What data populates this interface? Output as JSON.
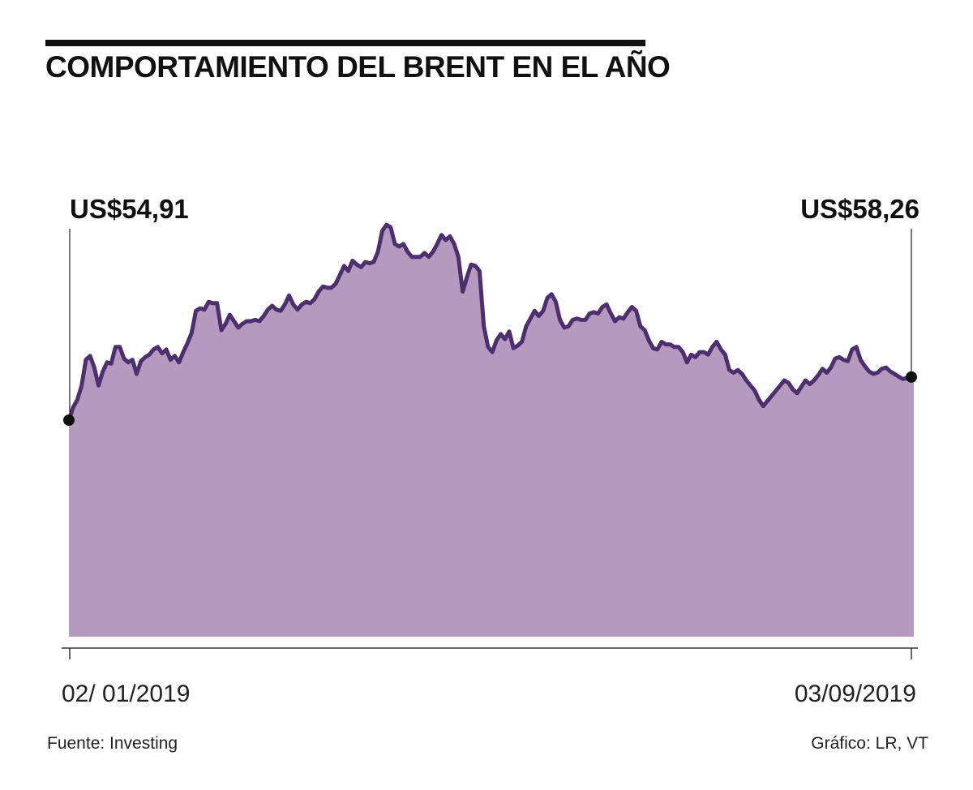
{
  "title": "COMPORTAMIENTO DEL BRENT EN EL AÑO",
  "source": "Fuente: Investing",
  "credit": "Gráfico: LR, VT",
  "colors": {
    "fill": "#b49abf",
    "line": "#4b2f6f",
    "text": "#111111"
  },
  "chart_data": {
    "type": "area",
    "title": "COMPORTAMIENTO DEL BRENT EN EL AÑO",
    "xlabel": "",
    "ylabel": "",
    "x_tick_labels": [
      "02/ 01/2019",
      "03/09/2019"
    ],
    "x_range": [
      "2019-01-02",
      "2019-09-03"
    ],
    "ylim": [
      30,
      75
    ],
    "grid": false,
    "start": {
      "date": "2019-01-02",
      "value": 54.91,
      "label": "US$54,91"
    },
    "end": {
      "date": "2019-09-03",
      "value": 58.26,
      "label": "US$58,26"
    },
    "series": [
      {
        "values": [
          54.91,
          55.9,
          56.5,
          57.6,
          59.6,
          59.9,
          59.0,
          57.6,
          58.7,
          59.4,
          59.3,
          60.6,
          60.6,
          59.7,
          59.4,
          59.6,
          58.5,
          59.5,
          59.8,
          60.0,
          60.4,
          60.6,
          60.1,
          60.4,
          59.6,
          59.9,
          59.4,
          60.2,
          60.9,
          61.7,
          63.4,
          63.6,
          63.5,
          64.1,
          64.0,
          64.0,
          61.9,
          62.4,
          63.1,
          62.6,
          62.1,
          62.4,
          62.6,
          62.6,
          62.7,
          62.6,
          63.0,
          63.5,
          63.8,
          63.5,
          63.4,
          63.9,
          64.6,
          63.9,
          63.5,
          63.9,
          64.1,
          64.0,
          64.3,
          64.9,
          65.3,
          65.2,
          65.2,
          65.5,
          66.2,
          66.9,
          66.5,
          67.3,
          67.0,
          66.8,
          67.2,
          67.1,
          67.2,
          68.0,
          69.6,
          70.1,
          69.9,
          68.6,
          68.4,
          68.6,
          68.0,
          67.6,
          67.6,
          67.6,
          67.9,
          67.6,
          68.0,
          68.6,
          69.3,
          68.9,
          69.2,
          68.6,
          67.6,
          64.9,
          66.0,
          67.0,
          66.9,
          66.5,
          62.2,
          60.6,
          60.2,
          61.1,
          61.6,
          61.2,
          61.8,
          60.5,
          60.7,
          61.0,
          62.2,
          62.8,
          63.4,
          63.0,
          63.4,
          64.4,
          64.7,
          64.1,
          62.7,
          62.1,
          62.2,
          62.7,
          62.8,
          62.7,
          62.7,
          63.2,
          63.3,
          63.2,
          63.7,
          63.9,
          63.2,
          62.6,
          62.9,
          62.8,
          63.3,
          63.7,
          63.4,
          62.2,
          61.9,
          61.1,
          60.5,
          60.4,
          61.0,
          60.8,
          60.8,
          60.6,
          60.6,
          60.2,
          59.4,
          60.0,
          59.8,
          60.2,
          60.2,
          60.0,
          60.6,
          61.0,
          60.4,
          60.0,
          58.8,
          58.6,
          58.8,
          58.5,
          58.0,
          57.6,
          57.2,
          56.5,
          56.0,
          56.4,
          56.8,
          57.2,
          57.6,
          58.0,
          57.8,
          57.3,
          57.0,
          57.5,
          58.0,
          57.7,
          58.0,
          58.4,
          58.9,
          58.6,
          59.0,
          59.7,
          59.8,
          59.6,
          59.5,
          60.4,
          60.6,
          59.6,
          59.1,
          58.7,
          58.5,
          58.6,
          58.9,
          59.0,
          58.7,
          58.5,
          58.3,
          58.1,
          58.2,
          58.26
        ]
      }
    ]
  }
}
